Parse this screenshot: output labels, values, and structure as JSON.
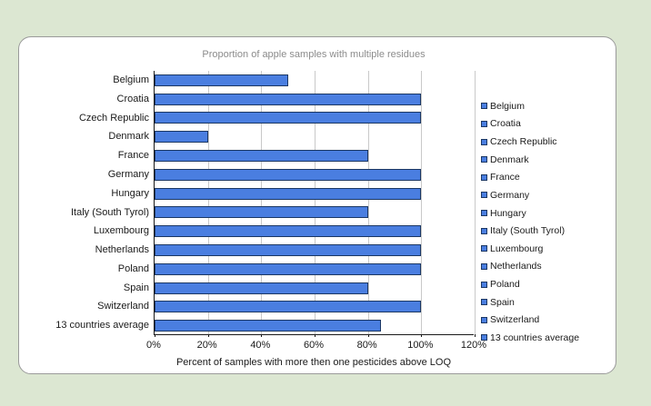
{
  "page": {
    "background_color": "#dce7d2",
    "card_border_color": "#9a9a9a"
  },
  "chart_data": {
    "type": "bar",
    "orientation": "horizontal",
    "title": "Proportion of apple samples with multiple residues",
    "xlabel": "Percent of samples with more then one pesticides above LOQ",
    "categories": [
      "Belgium",
      "Croatia",
      "Czech Republic",
      "Denmark",
      "France",
      "Germany",
      "Hungary",
      "Italy (South Tyrol)",
      "Luxembourg",
      "Netherlands",
      "Poland",
      "Spain",
      "Switzerland",
      "13 countries average"
    ],
    "values": [
      50,
      100,
      100,
      20,
      80,
      100,
      100,
      80,
      100,
      100,
      100,
      80,
      100,
      85
    ],
    "value_unit": "%",
    "xlim": [
      0,
      120
    ],
    "x_ticks": [
      "0%",
      "20%",
      "40%",
      "60%",
      "80%",
      "100%",
      "120%"
    ],
    "grid": true,
    "legend_position": "right",
    "legend_entries": [
      "Belgium",
      "Croatia",
      "Czech Republic",
      "Denmark",
      "France",
      "Germany",
      "Hungary",
      "Italy (South Tyrol)",
      "Luxembourg",
      "Netherlands",
      "Poland",
      "Spain",
      "Switzerland",
      "13 countries average"
    ],
    "colors": {
      "bar_fill": "#4a7ee0",
      "bar_border": "#1b3763",
      "gridline": "#c9c9c9",
      "axis_line": "#1a1a1a",
      "title_text": "#8c8c8c",
      "label_text": "#1a1a1a"
    }
  }
}
